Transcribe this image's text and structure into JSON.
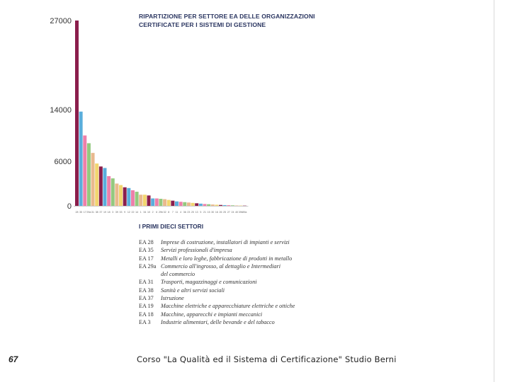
{
  "title_lines": [
    "RIPARTIZIONE PER SETTORE EA DELLE ORGANIZZAZIONI",
    "CERTIFICATE PER I SISTEMI DI GESTIONE"
  ],
  "chart_data": {
    "type": "bar",
    "title": "RIPARTIZIONE PER SETTORE EA DELLE ORGANIZZAZIONI CERTIFICATE PER I SISTEMI DI GESTIONE",
    "xlabel": "",
    "ylabel": "",
    "y_ticks": [
      "27000",
      "14000",
      "6000",
      "0"
    ],
    "categories": [
      "28",
      "35",
      "17",
      "29a",
      "31",
      "38",
      "37",
      "19",
      "18",
      "3",
      "39",
      "33",
      "9",
      "12",
      "22",
      "14",
      "1",
      "34",
      "10",
      "2",
      "6",
      "29b",
      "32",
      "8",
      "7",
      "11",
      "4",
      "36",
      "23",
      "20",
      "13",
      "5",
      "21",
      "15",
      "30",
      "16",
      "26",
      "25",
      "27",
      "24",
      "40",
      "39b",
      "39a"
    ],
    "values": [
      27000,
      13700,
      10000,
      8800,
      7300,
      5700,
      5300,
      5100,
      4000,
      3700,
      3000,
      2800,
      2500,
      2400,
      2100,
      1900,
      1500,
      1500,
      1400,
      1000,
      1000,
      950,
      900,
      800,
      700,
      600,
      550,
      500,
      450,
      400,
      350,
      300,
      250,
      220,
      180,
      150,
      120,
      100,
      90,
      70,
      50,
      40,
      30
    ],
    "series_colors": [
      "#8b1e4c",
      "#5aaedc",
      "#ee7faa",
      "#94c97f",
      "#e9b98e",
      "#f2d56f",
      "#8b1e4c",
      "#5aaedc",
      "#ee7faa",
      "#94c97f",
      "#e9b98e",
      "#f2d56f"
    ],
    "grid": false
  },
  "legend_title": "I PRIMI DIECI SETTORI",
  "legend_items": [
    {
      "code": "EA 28",
      "desc": "Imprese di costruzione, installatori di impianti e servizi"
    },
    {
      "code": "EA 35",
      "desc": "Servizi professionali d'impresa"
    },
    {
      "code": "EA 17",
      "desc": "Metalli e loro leghe, fabbricazione di prodotti in metallo"
    },
    {
      "code": "EA 29a",
      "desc": "Commercio all'ingrosso, al dettaglio e Intermediari"
    },
    {
      "code": "",
      "desc": "del commercio"
    },
    {
      "code": "EA 31",
      "desc": "Trasporti, magazzinaggi e comunicazioni"
    },
    {
      "code": "EA 38",
      "desc": "Sanità e altri servizi sociali"
    },
    {
      "code": "EA 37",
      "desc": "Istruzione"
    },
    {
      "code": "EA 19",
      "desc": "Macchine elettriche e apparecchiature elettriche e ottiche"
    },
    {
      "code": "EA 18",
      "desc": "Macchine, apparecchi e impianti meccanici"
    },
    {
      "code": "EA 3",
      "desc": "Industrie alimentari, delle bevande e del tabacco"
    }
  ],
  "footer": {
    "slide_number": "67",
    "course": "Corso \"La Qualità ed il Sistema di Certificazione\"",
    "author": "Studio Berni"
  }
}
